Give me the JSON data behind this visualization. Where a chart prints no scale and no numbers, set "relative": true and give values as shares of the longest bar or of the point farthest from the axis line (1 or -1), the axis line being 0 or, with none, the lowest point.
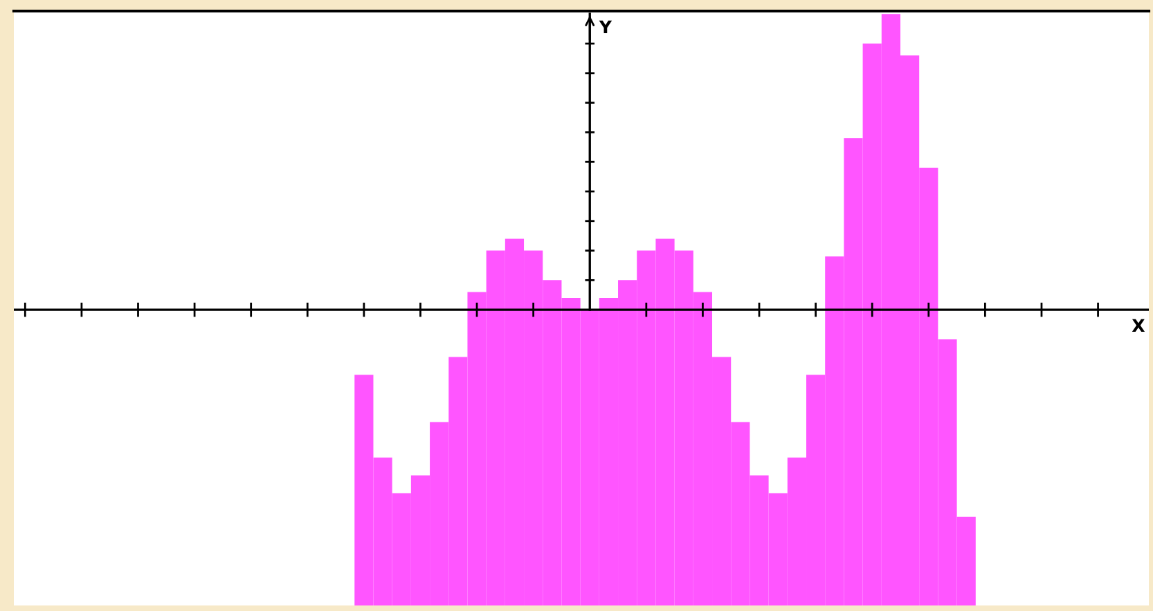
{
  "chart_data": {
    "type": "bar",
    "relative": true,
    "ylabel": "Y",
    "annotations": [
      "X"
    ],
    "color": "#ff55ff",
    "categories": [
      null,
      null,
      null,
      null,
      null,
      null,
      null,
      null,
      null,
      null,
      null,
      null,
      null,
      null,
      null,
      null,
      null,
      null,
      null,
      null,
      null,
      null,
      null,
      null,
      null,
      null,
      null,
      null,
      null,
      null,
      null,
      null,
      null
    ],
    "values": [
      0.39,
      0.25,
      0.19,
      0.22,
      0.31,
      0.42,
      0.53,
      0.6,
      0.62,
      0.6,
      0.55,
      0.52,
      0.5,
      0.52,
      0.55,
      0.6,
      0.62,
      0.6,
      0.53,
      0.42,
      0.31,
      0.22,
      0.19,
      0.25,
      0.39,
      0.59,
      0.79,
      0.95,
      1.0,
      0.93,
      0.74,
      0.45,
      0.15
    ],
    "ref_lines": [
      {
        "axis": "y",
        "value": 0.5,
        "color": "#000000"
      }
    ]
  }
}
